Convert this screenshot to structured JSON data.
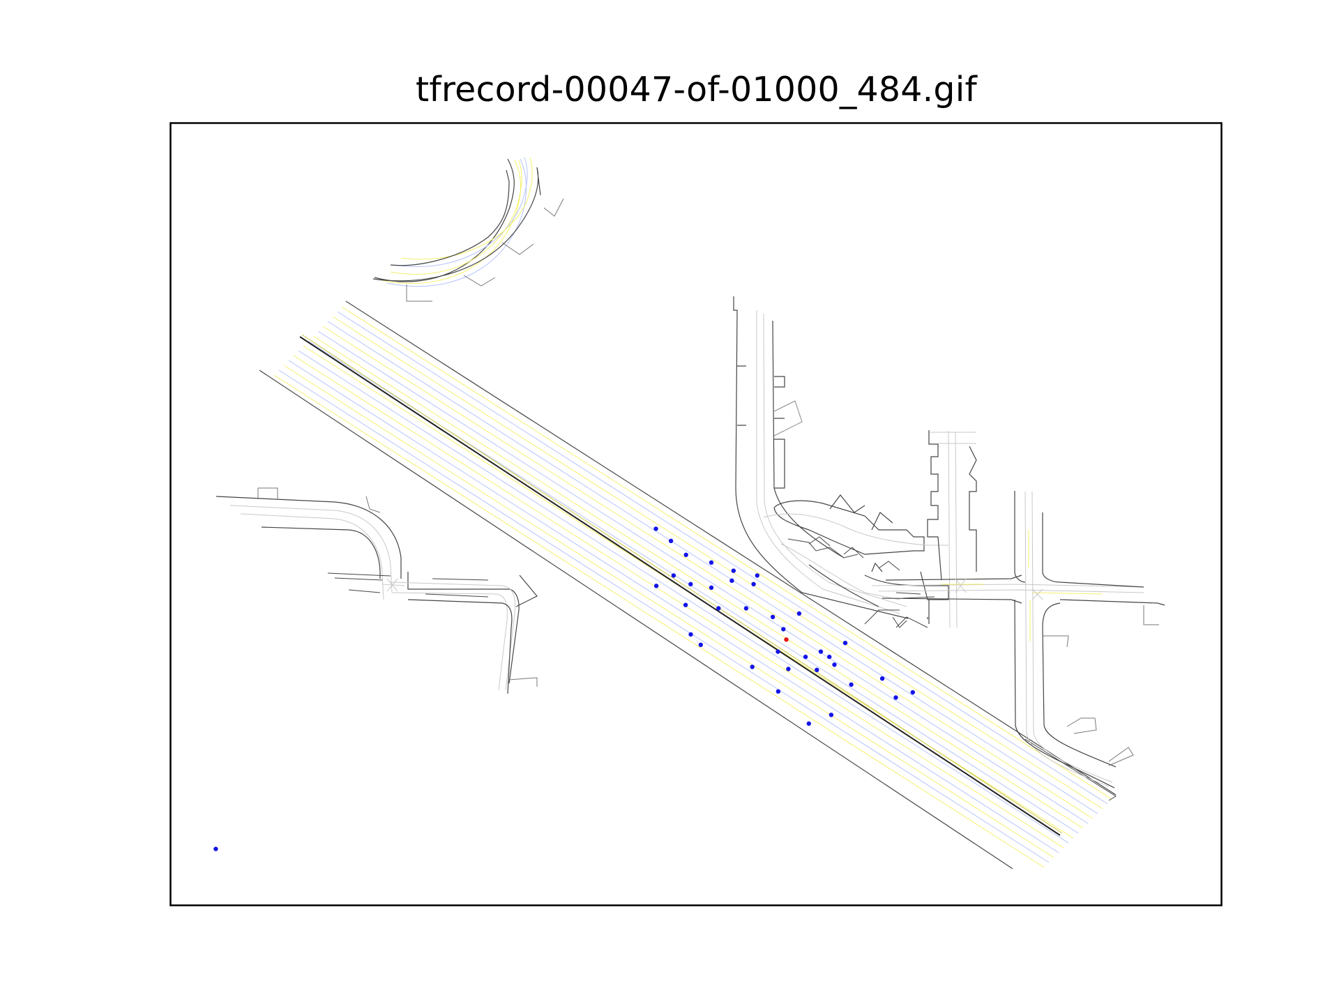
{
  "title": "tfrecord-00047-of-01000_484.gif",
  "colors": {
    "road_edge": "#444444",
    "lane_center": "#c8c8c8",
    "lane_marking_yellow": "#f5f06a",
    "lane_marking_blue": "#b4c3ff",
    "median_dark": "#222222",
    "agent": "#1414e6",
    "ego_agent": "#e61414",
    "frame": "#000000"
  },
  "agents": {
    "color_name": "blue",
    "ego_color_name": "red",
    "points": [
      [
        0.4619,
        0.5186
      ],
      [
        0.4762,
        0.5341
      ],
      [
        0.4905,
        0.5519
      ],
      [
        0.4787,
        0.5783
      ],
      [
        0.4949,
        0.5893
      ],
      [
        0.4623,
        0.5915
      ],
      [
        0.5146,
        0.5938
      ],
      [
        0.5341,
        0.5849
      ],
      [
        0.5548,
        0.5893
      ],
      [
        0.5146,
        0.5617
      ],
      [
        0.5357,
        0.5722
      ],
      [
        0.5582,
        0.5783
      ],
      [
        0.4901,
        0.6159
      ],
      [
        0.5214,
        0.6202
      ],
      [
        0.5477,
        0.6202
      ],
      [
        0.573,
        0.6313
      ],
      [
        0.5981,
        0.6269
      ],
      [
        0.5831,
        0.6468
      ],
      [
        0.5045,
        0.6668
      ],
      [
        0.495,
        0.6535
      ],
      [
        0.5535,
        0.695
      ],
      [
        0.5779,
        0.6755
      ],
      [
        0.5878,
        0.6977
      ],
      [
        0.6042,
        0.6822
      ],
      [
        0.6187,
        0.6755
      ],
      [
        0.6268,
        0.6822
      ],
      [
        0.6316,
        0.6922
      ],
      [
        0.6419,
        0.6645
      ],
      [
        0.6149,
        0.6988
      ],
      [
        0.5782,
        0.7264
      ],
      [
        0.6476,
        0.7176
      ],
      [
        0.6771,
        0.7099
      ],
      [
        0.69,
        0.7342
      ],
      [
        0.7061,
        0.7275
      ],
      [
        0.6286,
        0.7563
      ],
      [
        0.6073,
        0.7674
      ],
      [
        0.0434,
        0.9275
      ]
    ],
    "ego": [
      0.5859,
      0.6601
    ]
  }
}
